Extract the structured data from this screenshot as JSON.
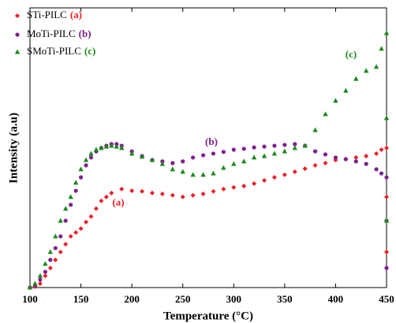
{
  "chart_data": {
    "type": "scatter",
    "x_label": "Temperature (°C)",
    "y_label": "Intensity (a.u)",
    "xlim": [
      100,
      450
    ],
    "xticks": [
      100,
      150,
      200,
      250,
      300,
      350,
      400,
      450
    ],
    "ylim": [
      0,
      100
    ],
    "yticks": [],
    "legend": "upper left",
    "series": [
      {
        "name": "STi-PILC",
        "tag": "(a)",
        "color": "#ee1c25",
        "marker": "diamond",
        "x": [
          100,
          105,
          110,
          115,
          120,
          125,
          130,
          135,
          140,
          145,
          150,
          155,
          160,
          165,
          170,
          175,
          180,
          190,
          200,
          210,
          220,
          230,
          240,
          250,
          260,
          270,
          280,
          290,
          300,
          310,
          320,
          330,
          340,
          350,
          360,
          370,
          380,
          390,
          400,
          410,
          420,
          430,
          440,
          445,
          450,
          450,
          450
        ],
        "values": [
          0,
          0.3,
          1.4,
          4.2,
          7,
          9.9,
          12.7,
          15.5,
          18.3,
          19.7,
          21.1,
          23.4,
          25.4,
          28.2,
          31,
          32.4,
          33.8,
          35.2,
          34.6,
          34.4,
          33.8,
          33.5,
          33,
          32.4,
          33,
          33.5,
          34.4,
          35.2,
          35.8,
          36.3,
          37.2,
          38.3,
          39.4,
          40.3,
          41.4,
          42.5,
          43.7,
          44.5,
          45.6,
          45.9,
          46.5,
          47,
          47.9,
          49.3,
          49.9,
          32.4,
          12.7
        ]
      },
      {
        "name": "MoTi-PILC",
        "tag": "(b)",
        "color": "#7f1f8f",
        "marker": "circle",
        "x": [
          100,
          105,
          110,
          115,
          120,
          125,
          130,
          135,
          140,
          145,
          150,
          155,
          160,
          165,
          170,
          175,
          180,
          185,
          190,
          200,
          210,
          220,
          230,
          240,
          250,
          260,
          270,
          280,
          290,
          300,
          310,
          320,
          330,
          340,
          350,
          360,
          370,
          380,
          390,
          400,
          410,
          420,
          430,
          440,
          445,
          450,
          450,
          450
        ],
        "values": [
          0,
          0.8,
          2.8,
          5.6,
          9.9,
          14.1,
          18.3,
          23.9,
          29.6,
          34.6,
          39.4,
          43.7,
          46.5,
          48.7,
          49.9,
          50.7,
          51.3,
          51.3,
          50.7,
          48.7,
          47,
          45.6,
          45.1,
          44.5,
          45.1,
          46.5,
          47.3,
          47.9,
          48.5,
          49.3,
          49.6,
          50.1,
          50.4,
          50.7,
          51,
          51.3,
          50.7,
          48.7,
          47.6,
          46.5,
          45.9,
          45.1,
          44.2,
          42.3,
          40.8,
          39.4,
          23.9,
          7
        ]
      },
      {
        "name": "SMoTi-PILC",
        "tag": "(c)",
        "color": "#1a8a1a",
        "marker": "triangle",
        "x": [
          100,
          105,
          110,
          115,
          120,
          125,
          130,
          135,
          140,
          145,
          150,
          155,
          160,
          165,
          170,
          175,
          180,
          185,
          190,
          200,
          210,
          220,
          230,
          240,
          250,
          260,
          270,
          280,
          290,
          300,
          310,
          320,
          330,
          340,
          350,
          360,
          370,
          380,
          390,
          400,
          410,
          420,
          430,
          440,
          445,
          450,
          450,
          450
        ],
        "values": [
          0,
          1.4,
          4.2,
          8.5,
          12.7,
          18.3,
          23.9,
          28.2,
          32.4,
          37.5,
          42.3,
          45.6,
          47.9,
          49.3,
          49.9,
          50.4,
          50.7,
          50.4,
          49.9,
          47.9,
          46.8,
          45.6,
          44.2,
          42.3,
          41.4,
          40.3,
          40.3,
          40.8,
          42.8,
          44.2,
          45.1,
          46.5,
          47,
          47.9,
          48.7,
          49.9,
          50.7,
          56.3,
          62,
          66.8,
          70.4,
          74.6,
          77.5,
          78.9,
          85.4,
          91,
          60.6,
          23.9
        ]
      }
    ],
    "annotations": [
      {
        "text": "(a)",
        "color": "#ee1c25"
      },
      {
        "text": "(b)",
        "color": "#7f1f8f"
      },
      {
        "text": "(c)",
        "color": "#1a8a1a"
      }
    ]
  }
}
